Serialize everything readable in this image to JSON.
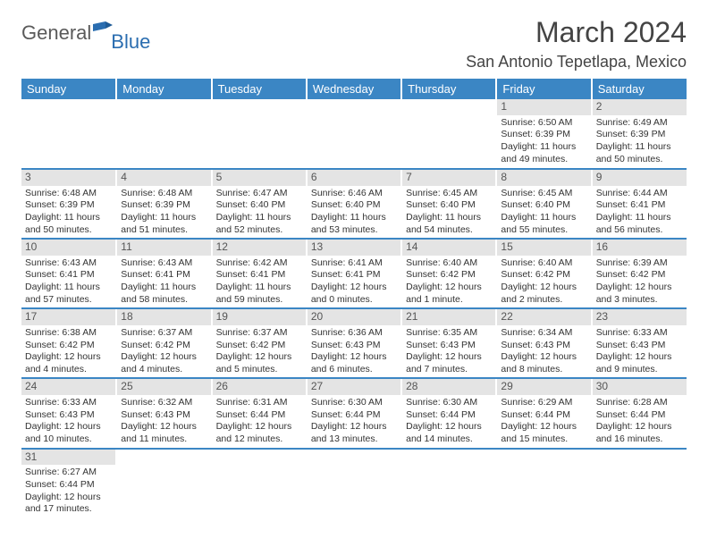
{
  "logo": {
    "text1": "General",
    "text2": "Blue"
  },
  "title": "March 2024",
  "location": "San Antonio Tepetlapa, Mexico",
  "colors": {
    "header_bg": "#3b86c4",
    "header_fg": "#ffffff",
    "daynum_bg": "#e4e4e4",
    "row_divider": "#3b86c4",
    "page_bg": "#ffffff",
    "text": "#333333"
  },
  "fonts": {
    "title_pt": 32,
    "location_pt": 18,
    "dayheader_pt": 13,
    "cell_pt": 10.5
  },
  "day_headers": [
    "Sunday",
    "Monday",
    "Tuesday",
    "Wednesday",
    "Thursday",
    "Friday",
    "Saturday"
  ],
  "weeks": [
    [
      {
        "n": "",
        "lines": []
      },
      {
        "n": "",
        "lines": []
      },
      {
        "n": "",
        "lines": []
      },
      {
        "n": "",
        "lines": []
      },
      {
        "n": "",
        "lines": []
      },
      {
        "n": "1",
        "lines": [
          "Sunrise: 6:50 AM",
          "Sunset: 6:39 PM",
          "Daylight: 11 hours",
          "and 49 minutes."
        ]
      },
      {
        "n": "2",
        "lines": [
          "Sunrise: 6:49 AM",
          "Sunset: 6:39 PM",
          "Daylight: 11 hours",
          "and 50 minutes."
        ]
      }
    ],
    [
      {
        "n": "3",
        "lines": [
          "Sunrise: 6:48 AM",
          "Sunset: 6:39 PM",
          "Daylight: 11 hours",
          "and 50 minutes."
        ]
      },
      {
        "n": "4",
        "lines": [
          "Sunrise: 6:48 AM",
          "Sunset: 6:39 PM",
          "Daylight: 11 hours",
          "and 51 minutes."
        ]
      },
      {
        "n": "5",
        "lines": [
          "Sunrise: 6:47 AM",
          "Sunset: 6:40 PM",
          "Daylight: 11 hours",
          "and 52 minutes."
        ]
      },
      {
        "n": "6",
        "lines": [
          "Sunrise: 6:46 AM",
          "Sunset: 6:40 PM",
          "Daylight: 11 hours",
          "and 53 minutes."
        ]
      },
      {
        "n": "7",
        "lines": [
          "Sunrise: 6:45 AM",
          "Sunset: 6:40 PM",
          "Daylight: 11 hours",
          "and 54 minutes."
        ]
      },
      {
        "n": "8",
        "lines": [
          "Sunrise: 6:45 AM",
          "Sunset: 6:40 PM",
          "Daylight: 11 hours",
          "and 55 minutes."
        ]
      },
      {
        "n": "9",
        "lines": [
          "Sunrise: 6:44 AM",
          "Sunset: 6:41 PM",
          "Daylight: 11 hours",
          "and 56 minutes."
        ]
      }
    ],
    [
      {
        "n": "10",
        "lines": [
          "Sunrise: 6:43 AM",
          "Sunset: 6:41 PM",
          "Daylight: 11 hours",
          "and 57 minutes."
        ]
      },
      {
        "n": "11",
        "lines": [
          "Sunrise: 6:43 AM",
          "Sunset: 6:41 PM",
          "Daylight: 11 hours",
          "and 58 minutes."
        ]
      },
      {
        "n": "12",
        "lines": [
          "Sunrise: 6:42 AM",
          "Sunset: 6:41 PM",
          "Daylight: 11 hours",
          "and 59 minutes."
        ]
      },
      {
        "n": "13",
        "lines": [
          "Sunrise: 6:41 AM",
          "Sunset: 6:41 PM",
          "Daylight: 12 hours",
          "and 0 minutes."
        ]
      },
      {
        "n": "14",
        "lines": [
          "Sunrise: 6:40 AM",
          "Sunset: 6:42 PM",
          "Daylight: 12 hours",
          "and 1 minute."
        ]
      },
      {
        "n": "15",
        "lines": [
          "Sunrise: 6:40 AM",
          "Sunset: 6:42 PM",
          "Daylight: 12 hours",
          "and 2 minutes."
        ]
      },
      {
        "n": "16",
        "lines": [
          "Sunrise: 6:39 AM",
          "Sunset: 6:42 PM",
          "Daylight: 12 hours",
          "and 3 minutes."
        ]
      }
    ],
    [
      {
        "n": "17",
        "lines": [
          "Sunrise: 6:38 AM",
          "Sunset: 6:42 PM",
          "Daylight: 12 hours",
          "and 4 minutes."
        ]
      },
      {
        "n": "18",
        "lines": [
          "Sunrise: 6:37 AM",
          "Sunset: 6:42 PM",
          "Daylight: 12 hours",
          "and 4 minutes."
        ]
      },
      {
        "n": "19",
        "lines": [
          "Sunrise: 6:37 AM",
          "Sunset: 6:42 PM",
          "Daylight: 12 hours",
          "and 5 minutes."
        ]
      },
      {
        "n": "20",
        "lines": [
          "Sunrise: 6:36 AM",
          "Sunset: 6:43 PM",
          "Daylight: 12 hours",
          "and 6 minutes."
        ]
      },
      {
        "n": "21",
        "lines": [
          "Sunrise: 6:35 AM",
          "Sunset: 6:43 PM",
          "Daylight: 12 hours",
          "and 7 minutes."
        ]
      },
      {
        "n": "22",
        "lines": [
          "Sunrise: 6:34 AM",
          "Sunset: 6:43 PM",
          "Daylight: 12 hours",
          "and 8 minutes."
        ]
      },
      {
        "n": "23",
        "lines": [
          "Sunrise: 6:33 AM",
          "Sunset: 6:43 PM",
          "Daylight: 12 hours",
          "and 9 minutes."
        ]
      }
    ],
    [
      {
        "n": "24",
        "lines": [
          "Sunrise: 6:33 AM",
          "Sunset: 6:43 PM",
          "Daylight: 12 hours",
          "and 10 minutes."
        ]
      },
      {
        "n": "25",
        "lines": [
          "Sunrise: 6:32 AM",
          "Sunset: 6:43 PM",
          "Daylight: 12 hours",
          "and 11 minutes."
        ]
      },
      {
        "n": "26",
        "lines": [
          "Sunrise: 6:31 AM",
          "Sunset: 6:44 PM",
          "Daylight: 12 hours",
          "and 12 minutes."
        ]
      },
      {
        "n": "27",
        "lines": [
          "Sunrise: 6:30 AM",
          "Sunset: 6:44 PM",
          "Daylight: 12 hours",
          "and 13 minutes."
        ]
      },
      {
        "n": "28",
        "lines": [
          "Sunrise: 6:30 AM",
          "Sunset: 6:44 PM",
          "Daylight: 12 hours",
          "and 14 minutes."
        ]
      },
      {
        "n": "29",
        "lines": [
          "Sunrise: 6:29 AM",
          "Sunset: 6:44 PM",
          "Daylight: 12 hours",
          "and 15 minutes."
        ]
      },
      {
        "n": "30",
        "lines": [
          "Sunrise: 6:28 AM",
          "Sunset: 6:44 PM",
          "Daylight: 12 hours",
          "and 16 minutes."
        ]
      }
    ],
    [
      {
        "n": "31",
        "lines": [
          "Sunrise: 6:27 AM",
          "Sunset: 6:44 PM",
          "Daylight: 12 hours",
          "and 17 minutes."
        ]
      },
      {
        "n": "",
        "lines": []
      },
      {
        "n": "",
        "lines": []
      },
      {
        "n": "",
        "lines": []
      },
      {
        "n": "",
        "lines": []
      },
      {
        "n": "",
        "lines": []
      },
      {
        "n": "",
        "lines": []
      }
    ]
  ]
}
